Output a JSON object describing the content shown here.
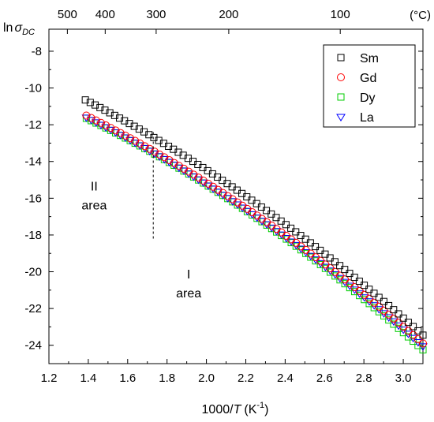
{
  "chart_data": {
    "type": "scatter",
    "xlabel_main": "1000/",
    "xlabel_italic": "T",
    "xlabel_unit": "(K",
    "xlabel_sup": "-1",
    "xlabel_close": ")",
    "ylabel_main": "ln",
    "ylabel_sym": "σ",
    "ylabel_sub": "DC",
    "xlim": [
      1.2,
      3.1
    ],
    "ylim": [
      -25,
      -6.8
    ],
    "x_ticks": [
      1.2,
      1.4,
      1.6,
      1.8,
      2.0,
      2.2,
      2.4,
      2.6,
      2.8,
      3.0
    ],
    "x_tick_labels": [
      "1.2",
      "1.4",
      "1.6",
      "1.8",
      "2.0",
      "2.2",
      "2.4",
      "2.6",
      "2.8",
      "3.0"
    ],
    "y_ticks": [
      -8,
      -10,
      -12,
      -14,
      -16,
      -18,
      -20,
      -22,
      -24
    ],
    "y_tick_labels": [
      "-8",
      "-10",
      "-12",
      "-14",
      "-16",
      "-18",
      "-20",
      "-22",
      "-24"
    ],
    "top_axis": {
      "unit_label": "(°C)",
      "ticks": [
        {
          "label": "500",
          "x": 1.2937
        },
        {
          "label": "400",
          "x": 1.4859
        },
        {
          "label": "300",
          "x": 1.7447
        },
        {
          "label": "200",
          "x": 2.1135
        },
        {
          "label": "100",
          "x": 2.6799
        }
      ]
    },
    "series": [
      {
        "name": "Sm",
        "marker": "square",
        "color": "#000000",
        "x_start": 1.385,
        "x_end": 3.1,
        "n": 70,
        "y_start": -10.65,
        "y_mid": -16.2,
        "y_end": -23.45
      },
      {
        "name": "Gd",
        "marker": "circle",
        "color": "#ff0000",
        "x_start": 1.39,
        "x_end": 3.1,
        "n": 70,
        "y_start": -11.5,
        "y_mid": -16.85,
        "y_end": -23.9
      },
      {
        "name": "Dy",
        "marker": "square",
        "color": "#00cc00",
        "x_start": 1.39,
        "x_end": 3.1,
        "n": 70,
        "y_start": -11.65,
        "y_mid": -17.0,
        "y_end": -24.25
      },
      {
        "name": "La",
        "marker": "triangle-down",
        "color": "#0000ff",
        "x_start": 1.39,
        "x_end": 3.1,
        "n": 70,
        "y_start": -11.6,
        "y_mid": -16.95,
        "y_end": -24.05
      }
    ],
    "divider": {
      "x": 1.73,
      "y_top": -12.4,
      "y_bottom": -18.2
    },
    "annotations": [
      {
        "line1": "II",
        "line2": "area",
        "x": 1.43,
        "y": -16.0
      },
      {
        "line1": "I",
        "line2": "area",
        "x": 1.91,
        "y": -20.8
      }
    ],
    "legend_position": "top-right"
  }
}
